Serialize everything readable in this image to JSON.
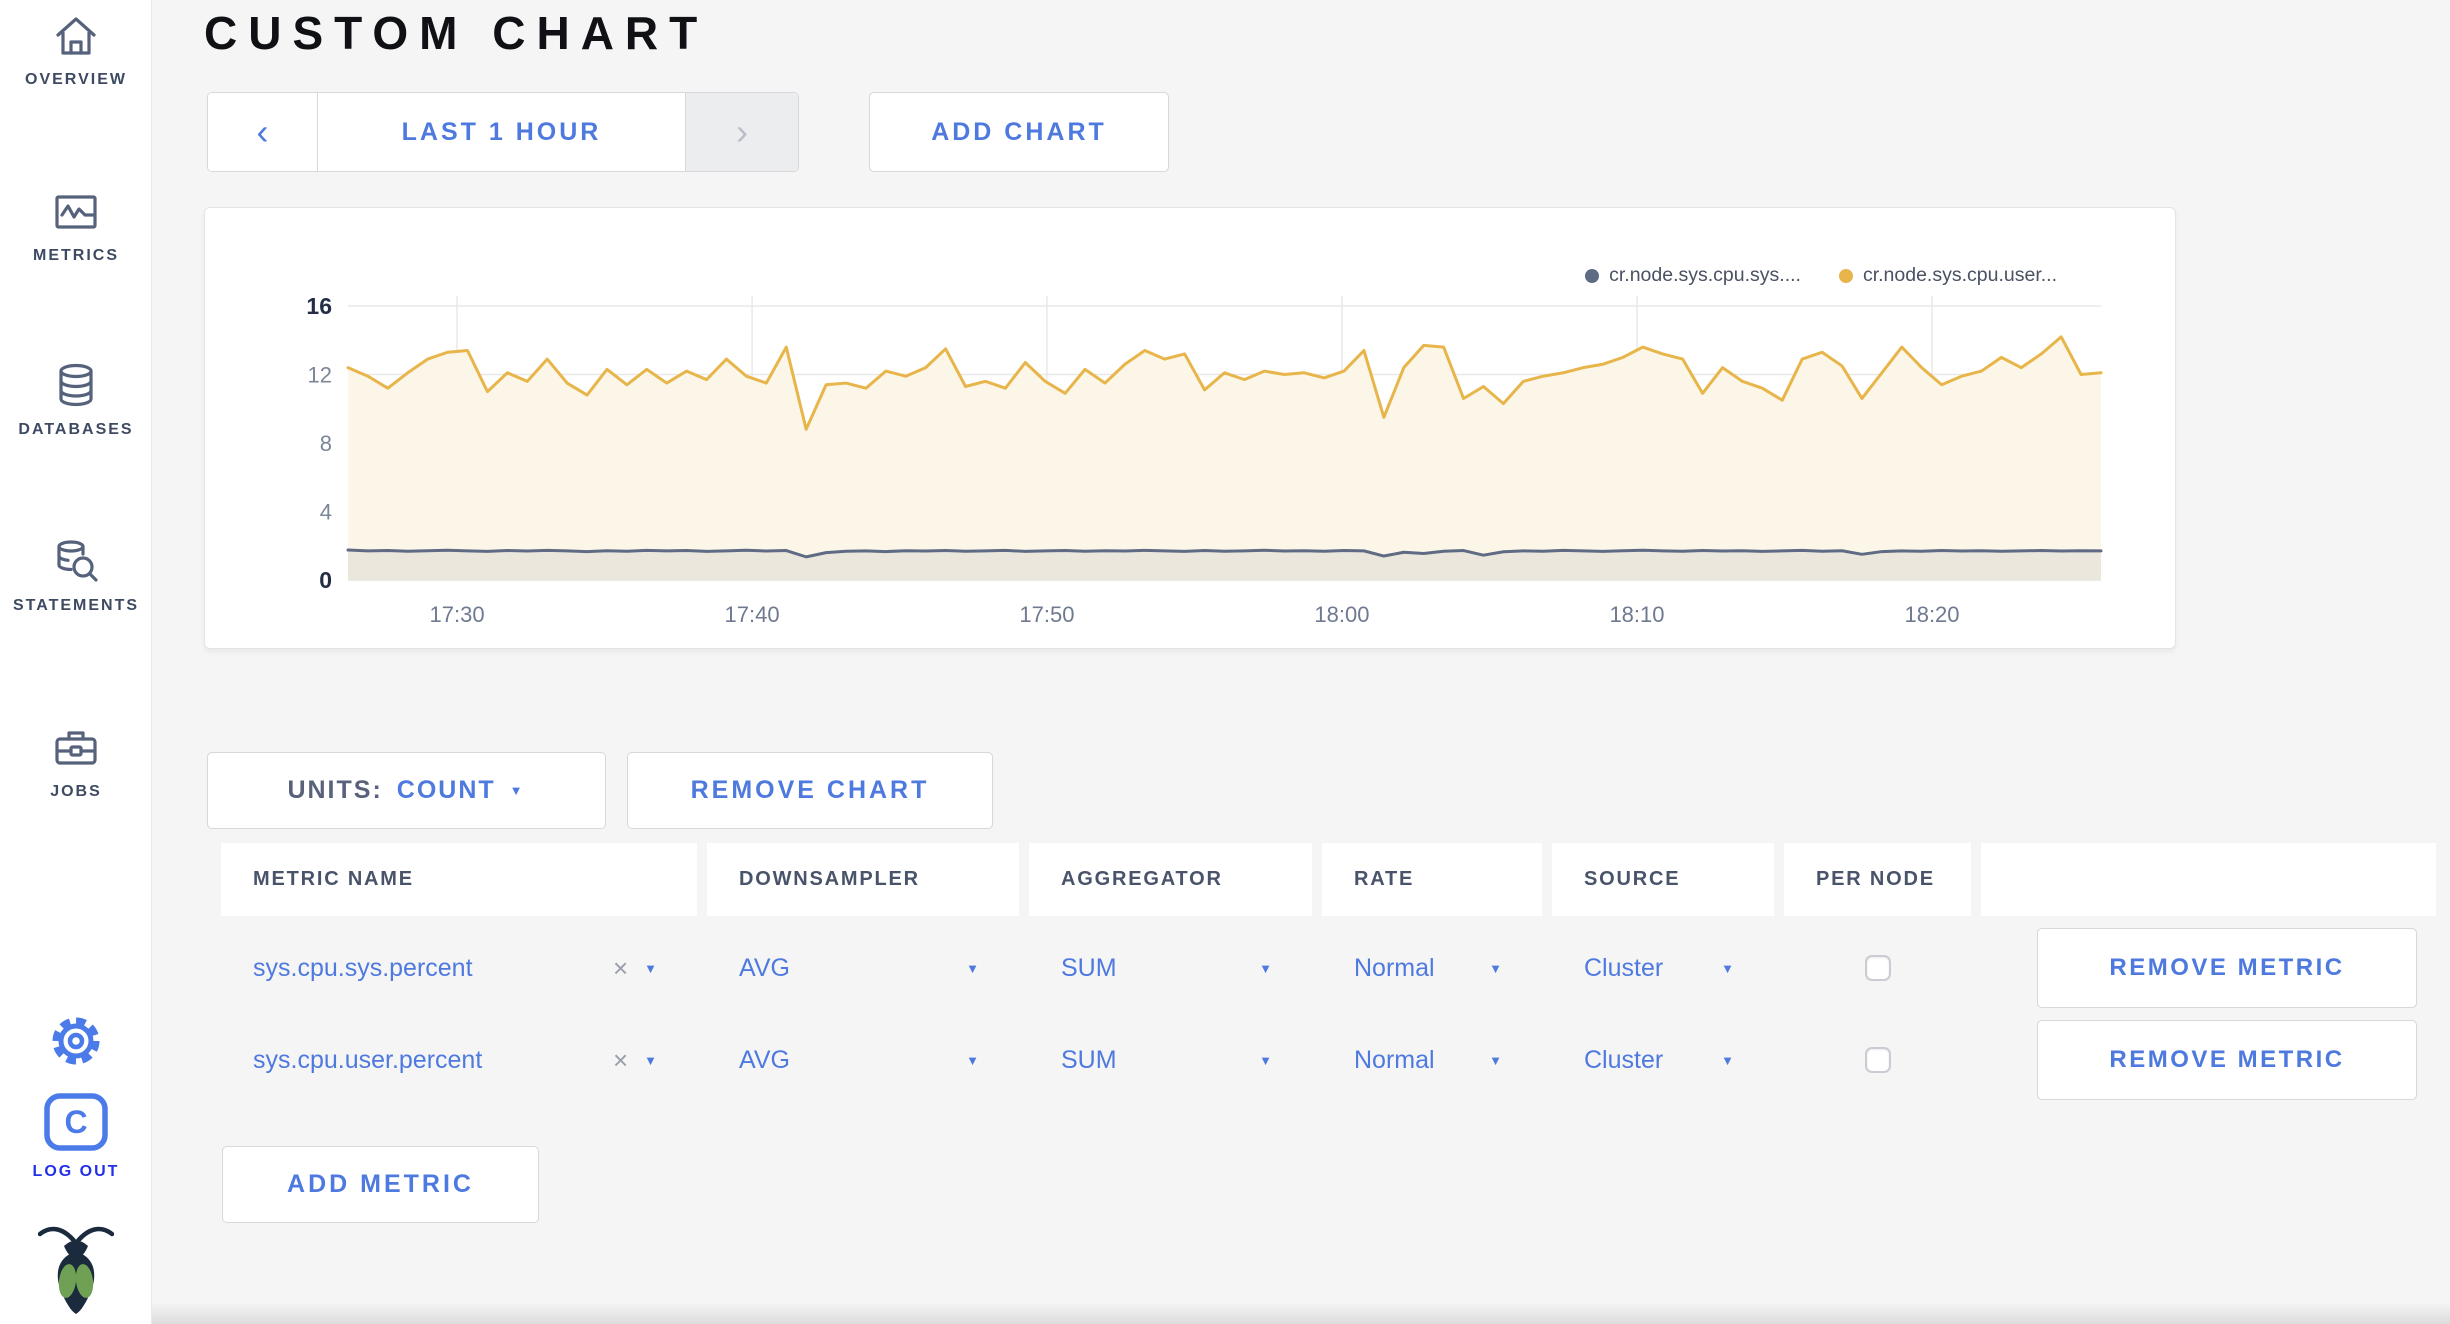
{
  "page_title": "CUSTOM CHART",
  "colors": {
    "accent_blue": "#4E79DF",
    "logout_blue": "#2330E8",
    "sidebar_slate": "#56627B",
    "series_sys": "#5F6B84",
    "series_user": "#E7B54A",
    "fill_user": "#FBF6E7",
    "fill_sys": "#EBE7DD"
  },
  "icons": {
    "chevron_left": "‹",
    "chevron_right": "›",
    "caret_down": "▼",
    "clear": "×",
    "logout_letter": "C"
  },
  "sidebar": {
    "items": [
      {
        "label": "OVERVIEW",
        "icon": "home-icon"
      },
      {
        "label": "METRICS",
        "icon": "metrics-icon"
      },
      {
        "label": "DATABASES",
        "icon": "database-icon"
      },
      {
        "label": "STATEMENTS",
        "icon": "statements-icon"
      },
      {
        "label": "JOBS",
        "icon": "jobs-icon"
      }
    ],
    "settings_icon": "gear-icon",
    "logout": {
      "label": "LOG OUT",
      "icon": "logout-icon"
    },
    "logo": "cockroachdb-logo"
  },
  "toolbar": {
    "time_range": {
      "label": "LAST 1 HOUR"
    },
    "add_chart": "ADD CHART"
  },
  "controls": {
    "units_label": "UNITS:",
    "units_value": "COUNT",
    "remove_chart": "REMOVE CHART",
    "add_metric": "ADD METRIC"
  },
  "chart_data": {
    "type": "line",
    "title": "",
    "units": "count",
    "ylim": [
      0,
      16
    ],
    "yticks": [
      0,
      4,
      8,
      12,
      16
    ],
    "grid": true,
    "legend_position": "top-right",
    "x_range": [
      "17:26",
      "18:25"
    ],
    "xticks": [
      {
        "label": "17:30",
        "pos": 0.0622
      },
      {
        "label": "17:40",
        "pos": 0.2305
      },
      {
        "label": "17:50",
        "pos": 0.3987
      },
      {
        "label": "18:00",
        "pos": 0.567
      },
      {
        "label": "18:10",
        "pos": 0.7353
      },
      {
        "label": "18:20",
        "pos": 0.9036
      }
    ],
    "series": [
      {
        "name": "cr.node.sys.cpu.sys....",
        "color": "#5F6B84",
        "fill": "#EBE7DD",
        "values": [
          1.75,
          1.7,
          1.72,
          1.68,
          1.71,
          1.74,
          1.7,
          1.67,
          1.72,
          1.69,
          1.73,
          1.7,
          1.66,
          1.71,
          1.68,
          1.73,
          1.7,
          1.72,
          1.67,
          1.7,
          1.74,
          1.69,
          1.72,
          1.35,
          1.6,
          1.68,
          1.7,
          1.66,
          1.71,
          1.69,
          1.72,
          1.68,
          1.7,
          1.73,
          1.67,
          1.7,
          1.72,
          1.68,
          1.71,
          1.69,
          1.73,
          1.7,
          1.67,
          1.72,
          1.68,
          1.7,
          1.74,
          1.69,
          1.71,
          1.68,
          1.72,
          1.7,
          1.4,
          1.62,
          1.55,
          1.68,
          1.72,
          1.45,
          1.65,
          1.7,
          1.68,
          1.73,
          1.7,
          1.67,
          1.71,
          1.74,
          1.7,
          1.68,
          1.72,
          1.69,
          1.71,
          1.67,
          1.7,
          1.73,
          1.68,
          1.71,
          1.5,
          1.66,
          1.7,
          1.68,
          1.72,
          1.69,
          1.71,
          1.68,
          1.7,
          1.72,
          1.69,
          1.71,
          1.7
        ]
      },
      {
        "name": "cr.node.sys.cpu.user...",
        "color": "#E7B54A",
        "fill": "#FBF6E7",
        "values": [
          12.4,
          11.9,
          11.2,
          12.1,
          12.9,
          13.3,
          13.4,
          11.0,
          12.1,
          11.6,
          12.9,
          11.5,
          10.8,
          12.3,
          11.4,
          12.3,
          11.5,
          12.2,
          11.7,
          12.9,
          11.9,
          11.5,
          13.6,
          8.8,
          11.4,
          11.5,
          11.2,
          12.2,
          11.9,
          12.4,
          13.5,
          11.3,
          11.6,
          11.2,
          12.7,
          11.6,
          10.9,
          12.3,
          11.5,
          12.6,
          13.4,
          12.9,
          13.2,
          11.1,
          12.1,
          11.7,
          12.2,
          12.0,
          12.1,
          11.8,
          12.2,
          13.4,
          9.5,
          12.4,
          13.7,
          13.6,
          10.6,
          11.3,
          10.3,
          11.6,
          11.9,
          12.1,
          12.4,
          12.6,
          13.0,
          13.6,
          13.2,
          12.9,
          10.9,
          12.4,
          11.6,
          11.2,
          10.5,
          12.9,
          13.3,
          12.5,
          10.6,
          12.1,
          13.6,
          12.4,
          11.4,
          11.9,
          12.2,
          13.0,
          12.4,
          13.2,
          14.2,
          12.0,
          12.1
        ]
      }
    ]
  },
  "table": {
    "headers": [
      "METRIC NAME",
      "DOWNSAMPLER",
      "AGGREGATOR",
      "RATE",
      "SOURCE",
      "PER NODE"
    ],
    "rows": [
      {
        "metric_name": "sys.cpu.sys.percent",
        "downsampler": "AVG",
        "aggregator": "SUM",
        "rate": "Normal",
        "source": "Cluster",
        "per_node_checked": false,
        "remove": "REMOVE METRIC"
      },
      {
        "metric_name": "sys.cpu.user.percent",
        "downsampler": "AVG",
        "aggregator": "SUM",
        "rate": "Normal",
        "source": "Cluster",
        "per_node_checked": false,
        "remove": "REMOVE METRIC"
      }
    ]
  }
}
